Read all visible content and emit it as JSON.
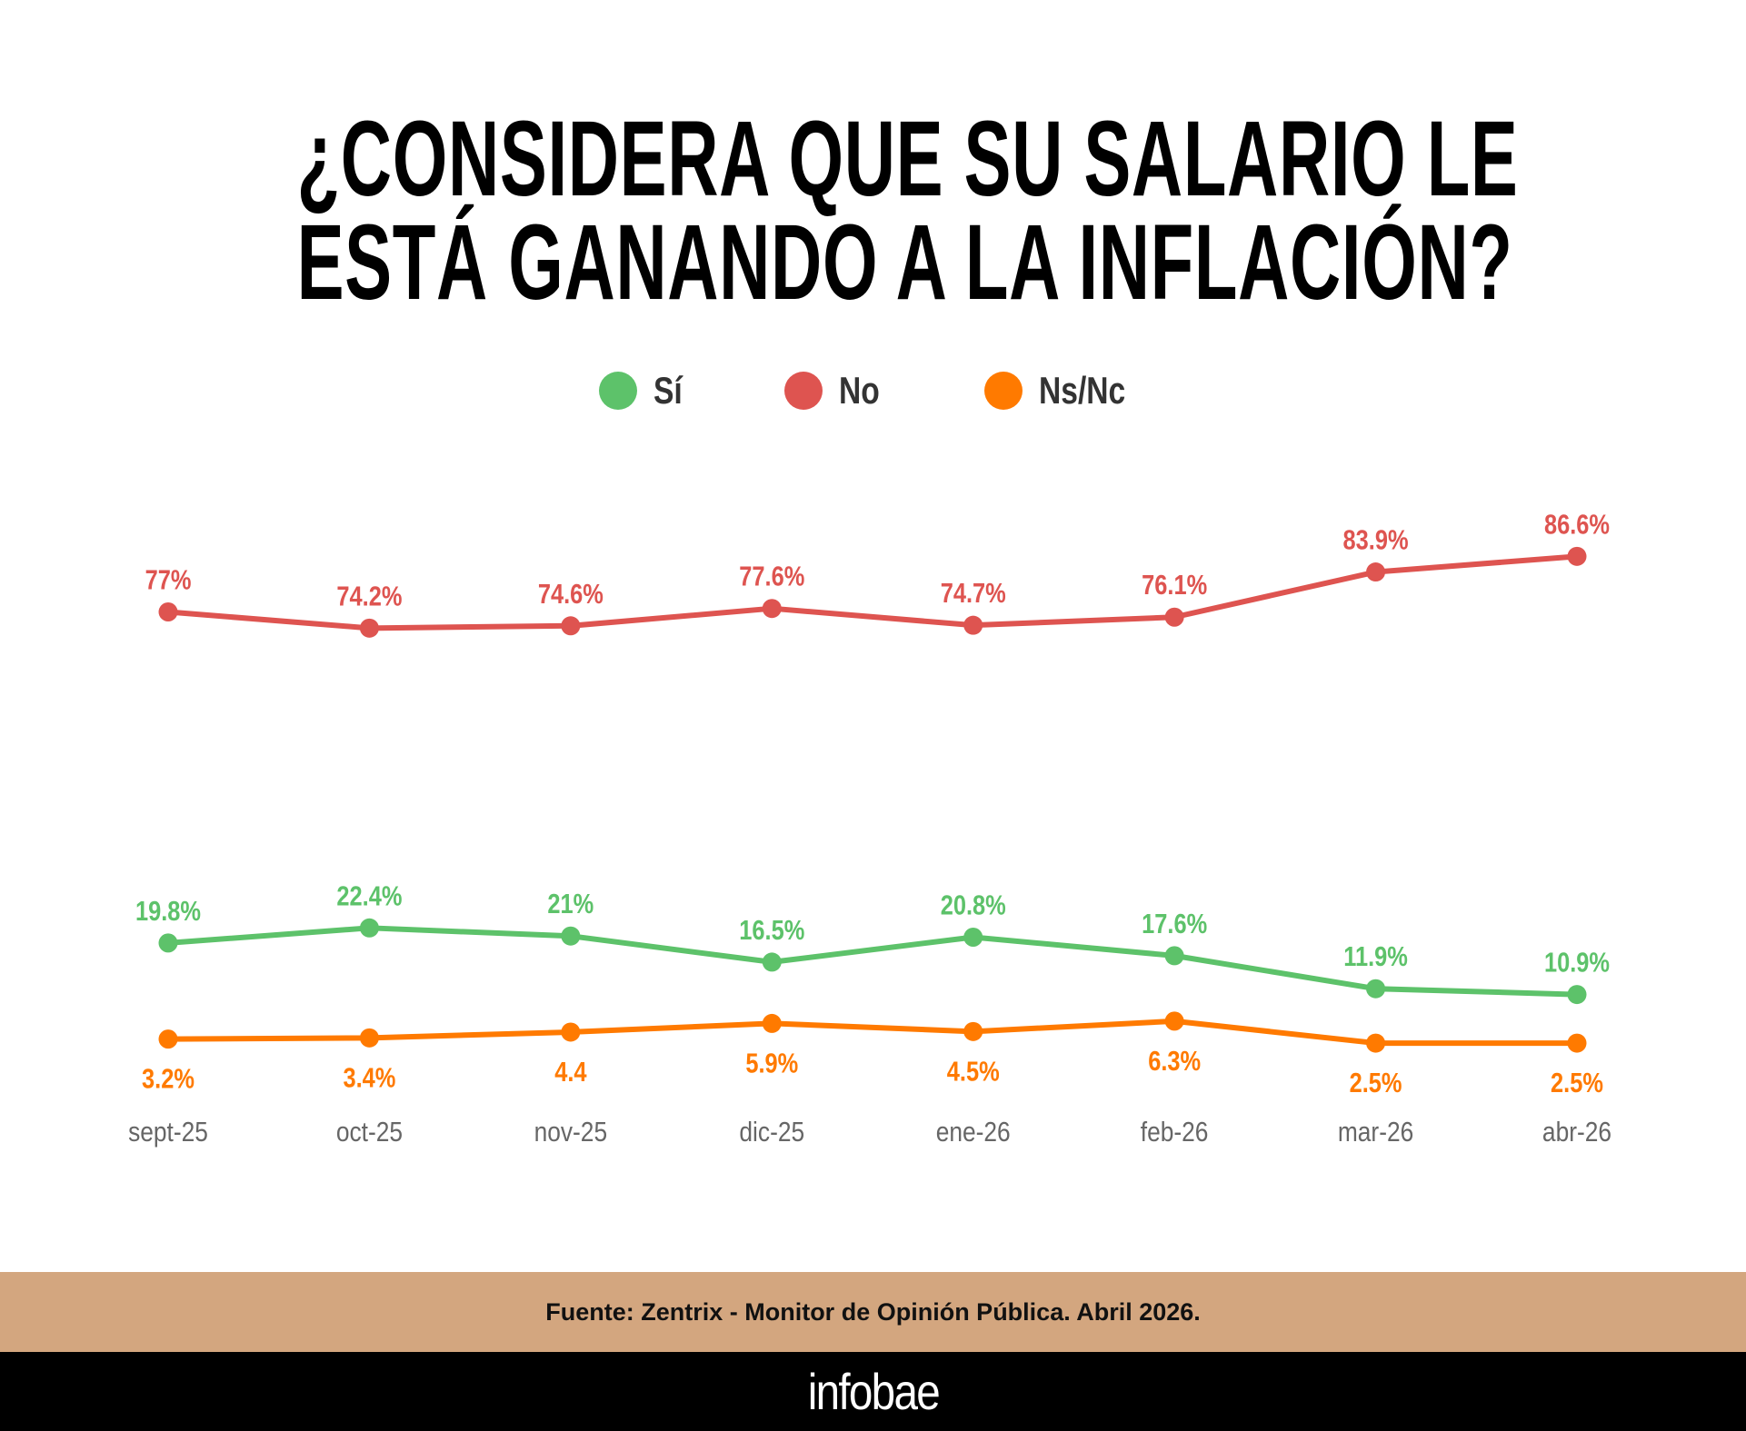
{
  "chart_data": {
    "type": "line",
    "title": [
      "¿CONSIDERA QUE SU SALARIO LE",
      "ESTÁ GANANDO A LA INFLACIÓN?"
    ],
    "categories": [
      "sept-25",
      "oct-25",
      "nov-25",
      "dic-25",
      "ene-26",
      "feb-26",
      "mar-26",
      "abr-26"
    ],
    "series": [
      {
        "name": "Sí",
        "color": "#5DC26A",
        "values": [
          19.8,
          22.4,
          21,
          16.5,
          20.8,
          17.6,
          11.9,
          10.9
        ],
        "labels": [
          "19.8%",
          "22.4%",
          "21%",
          "16.5%",
          "20.8%",
          "17.6%",
          "11.9%",
          "10.9%"
        ],
        "label_position": "above"
      },
      {
        "name": "No",
        "color": "#DE5450",
        "values": [
          77,
          74.2,
          74.6,
          77.6,
          74.7,
          76.1,
          83.9,
          86.6
        ],
        "labels": [
          "77%",
          "74.2%",
          "74.6%",
          "77.6%",
          "74.7%",
          "76.1%",
          "83.9%",
          "86.6%"
        ],
        "label_position": "above"
      },
      {
        "name": "Ns/Nc",
        "color": "#FF7A00",
        "values": [
          3.2,
          3.4,
          4.4,
          5.9,
          4.5,
          6.3,
          2.5,
          2.5
        ],
        "labels": [
          "3.2%",
          "3.4%",
          "4.4",
          "5.9%",
          "4.5%",
          "6.3%",
          "2.5%",
          "2.5%"
        ],
        "label_position": "below"
      }
    ],
    "legend_placement": "top-center",
    "grid": false,
    "y_axis_visible": false
  },
  "footer": {
    "source": "Fuente: Zentrix - Monitor de Opinión Pública. Abril 2026.",
    "logo": "infobae",
    "band_color": "#D3A67F"
  }
}
